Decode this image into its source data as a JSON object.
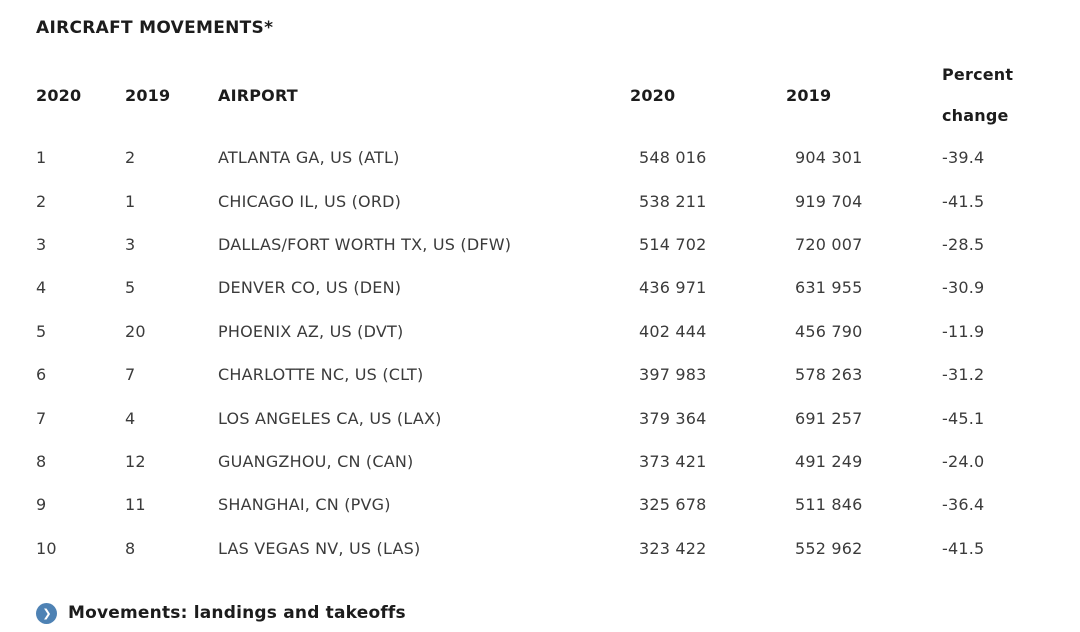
{
  "title": "AIRCRAFT MOVEMENTS*",
  "accent_color": "#4e82b4",
  "text_colors": {
    "heading": "#1c1c1c",
    "data": "#3b3b3b"
  },
  "table": {
    "headers": {
      "rank_2020": "2020",
      "rank_2019": "2019",
      "airport": "AIRPORT",
      "movements_2020": "2020",
      "movements_2019": "2019",
      "percent_change_line1": "Percent",
      "percent_change_line2": "change"
    },
    "rows": [
      {
        "rank_2020": "1",
        "rank_2019": "2",
        "airport": "ATLANTA GA, US (ATL)",
        "movements_2020": "548 016",
        "movements_2019": "904 301",
        "percent_change": "-39.4"
      },
      {
        "rank_2020": "2",
        "rank_2019": "1",
        "airport": "CHICAGO IL, US (ORD)",
        "movements_2020": "538 211",
        "movements_2019": "919 704",
        "percent_change": "-41.5"
      },
      {
        "rank_2020": "3",
        "rank_2019": "3",
        "airport": "DALLAS/FORT WORTH TX, US (DFW)",
        "movements_2020": "514 702",
        "movements_2019": "720 007",
        "percent_change": "-28.5"
      },
      {
        "rank_2020": "4",
        "rank_2019": "5",
        "airport": "DENVER CO, US (DEN)",
        "movements_2020": "436 971",
        "movements_2019": "631 955",
        "percent_change": "-30.9"
      },
      {
        "rank_2020": "5",
        "rank_2019": "20",
        "airport": "PHOENIX AZ, US (DVT)",
        "movements_2020": "402 444",
        "movements_2019": "456 790",
        "percent_change": "-11.9"
      },
      {
        "rank_2020": "6",
        "rank_2019": "7",
        "airport": "CHARLOTTE NC, US (CLT)",
        "movements_2020": "397 983",
        "movements_2019": "578 263",
        "percent_change": "-31.2"
      },
      {
        "rank_2020": "7",
        "rank_2019": "4",
        "airport": "LOS ANGELES CA, US (LAX)",
        "movements_2020": "379 364",
        "movements_2019": "691 257",
        "percent_change": "-45.1"
      },
      {
        "rank_2020": "8",
        "rank_2019": "12",
        "airport": "GUANGZHOU, CN (CAN)",
        "movements_2020": "373 421",
        "movements_2019": "491 249",
        "percent_change": "-24.0"
      },
      {
        "rank_2020": "9",
        "rank_2019": "11",
        "airport": "SHANGHAI, CN (PVG)",
        "movements_2020": "325 678",
        "movements_2019": "511 846",
        "percent_change": "-36.4"
      },
      {
        "rank_2020": "10",
        "rank_2019": "8",
        "airport": "LAS VEGAS NV, US (LAS)",
        "movements_2020": "323 422",
        "movements_2019": "552 962",
        "percent_change": "-41.5"
      }
    ]
  },
  "footnote": {
    "icon_glyph": "❯",
    "text": "Movements: landings and takeoffs"
  }
}
